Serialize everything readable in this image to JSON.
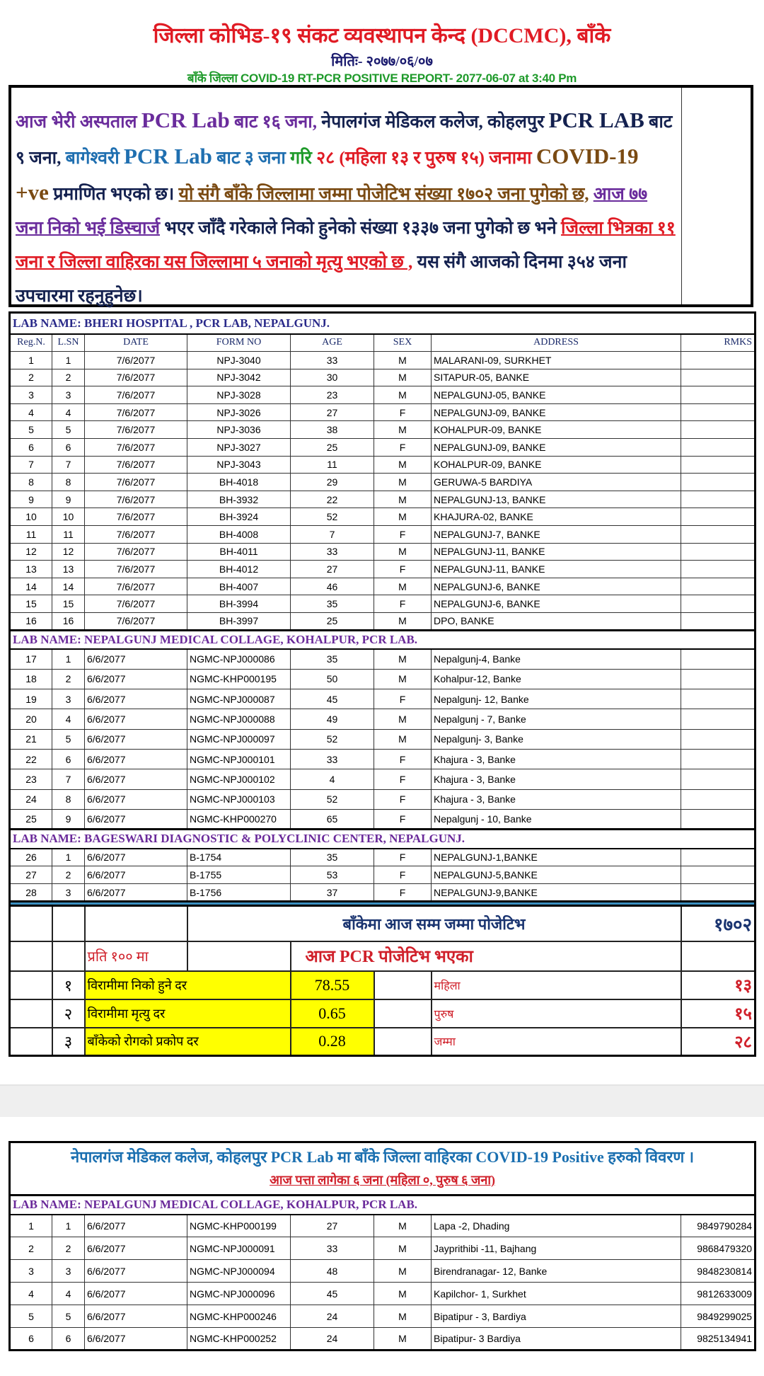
{
  "header": {
    "title": "जिल्ला कोभिड-१९ संकट व्यवस्थापन केन्द (DCCMC), बाँके",
    "date": "मितिः- २०७७/०६/०७",
    "subtitle": "बाँके जिल्ला COVID-19 RT-PCR POSITIVE REPORT- 2077-06-07  at 3:40 Pm"
  },
  "summary_paragraph": [
    {
      "text": "आज भेरी अस्पताल ",
      "color": "#6a2c9c"
    },
    {
      "text": "PCR Lab",
      "color": "#6a2c9c",
      "latin": true
    },
    {
      "text": " बाट १६ जना, ",
      "color": "#6a2c9c"
    },
    {
      "text": "नेपालगंज मेडिकल कलेज, कोहलपुर ",
      "color": "#14214f"
    },
    {
      "text": "PCR LAB",
      "color": "#14214f",
      "latin": true
    },
    {
      "text": " बाट ९ जना, ",
      "color": "#14214f"
    },
    {
      "text": "बागेश्वरी ",
      "color": "#1f6fb0"
    },
    {
      "text": "PCR Lab",
      "color": "#1f6fb0",
      "latin": true
    },
    {
      "text": " बाट ३ जना ",
      "color": "#1f6fb0"
    },
    {
      "text": "गरि ",
      "color": "#1e9a2a"
    },
    {
      "text": "२८ (महिला १३ र पुरुष १५) जनामा ",
      "color": "#e01b24"
    },
    {
      "text": "COVID-19 +ve",
      "color": "#7a4a12",
      "latin": true
    },
    {
      "text": "  प्रमाणित भएको छ। ",
      "color": "#14214f"
    },
    {
      "text": "यो संगै बाँके जिल्लामा जम्मा पोजेटिभ संख्या १७०२ जना पुगेको छ,",
      "color": "#7a4a12",
      "underline": true
    },
    {
      "text": " ",
      "color": "#14214f"
    },
    {
      "text": "आज ७७ जना निको भई डिस्चार्ज",
      "color": "#6a2c9c",
      "underline": true
    },
    {
      "text": " भएर जाँदै गरेकाले निको हुनेको संख्या १३३७ जना पुगेको छ भने ",
      "color": "#14214f"
    },
    {
      "text": "जिल्ला भित्रका ११ जना र जिल्ला वाहिरका यस जिल्लामा ५ जनाको मृत्यु भएको छ ,",
      "color": "#e01b24",
      "underline": true
    },
    {
      "text": " यस संगै आजको दिनमा ३५४ जना उपचारमा रहनुहुनेछ।",
      "color": "#14214f"
    }
  ],
  "columns": [
    "Reg.N.",
    "L.SN",
    "DATE",
    "FORM NO",
    "AGE",
    "SEX",
    "ADDRESS",
    "RMKS"
  ],
  "labs": [
    {
      "name": "LAB NAME: BHERI HOSPITAL , PCR LAB, NEPALGUNJ.",
      "rows": [
        [
          "1",
          "1",
          "7/6/2077",
          "NPJ-3040",
          "33",
          "M",
          "MALARANI-09, SURKHET",
          ""
        ],
        [
          "2",
          "2",
          "7/6/2077",
          "NPJ-3042",
          "30",
          "M",
          "SITAPUR-05, BANKE",
          ""
        ],
        [
          "3",
          "3",
          "7/6/2077",
          "NPJ-3028",
          "23",
          "M",
          "NEPALGUNJ-05, BANKE",
          ""
        ],
        [
          "4",
          "4",
          "7/6/2077",
          "NPJ-3026",
          "27",
          "F",
          "NEPALGUNJ-09, BANKE",
          ""
        ],
        [
          "5",
          "5",
          "7/6/2077",
          "NPJ-3036",
          "38",
          "M",
          "KOHALPUR-09, BANKE",
          ""
        ],
        [
          "6",
          "6",
          "7/6/2077",
          "NPJ-3027",
          "25",
          "F",
          "NEPALGUNJ-09, BANKE",
          ""
        ],
        [
          "7",
          "7",
          "7/6/2077",
          "NPJ-3043",
          "11",
          "M",
          "KOHALPUR-09, BANKE",
          ""
        ],
        [
          "8",
          "8",
          "7/6/2077",
          "BH-4018",
          "29",
          "M",
          "GERUWA-5 BARDIYA",
          ""
        ],
        [
          "9",
          "9",
          "7/6/2077",
          "BH-3932",
          "22",
          "M",
          "NEPALGUNJ-13, BANKE",
          ""
        ],
        [
          "10",
          "10",
          "7/6/2077",
          "BH-3924",
          "52",
          "M",
          "KHAJURA-02, BANKE",
          ""
        ],
        [
          "11",
          "11",
          "7/6/2077",
          "BH-4008",
          "7",
          "F",
          "NEPALGUNJ-7, BANKE",
          ""
        ],
        [
          "12",
          "12",
          "7/6/2077",
          "BH-4011",
          "33",
          "M",
          "NEPALGUNJ-11, BANKE",
          ""
        ],
        [
          "13",
          "13",
          "7/6/2077",
          "BH-4012",
          "27",
          "F",
          "NEPALGUNJ-11, BANKE",
          ""
        ],
        [
          "14",
          "14",
          "7/6/2077",
          "BH-4007",
          "46",
          "M",
          "NEPALGUNJ-6, BANKE",
          ""
        ],
        [
          "15",
          "15",
          "7/6/2077",
          "BH-3994",
          "35",
          "F",
          "NEPALGUNJ-6, BANKE",
          ""
        ],
        [
          "16",
          "16",
          "7/6/2077",
          "BH-3997",
          "25",
          "M",
          "DPO, BANKE",
          ""
        ]
      ]
    },
    {
      "name": "LAB NAME: NEPALGUNJ MEDICAL COLLAGE, KOHALPUR, PCR LAB.",
      "rows": [
        [
          "17",
          "1",
          "6/6/2077",
          "NGMC-NPJ000086",
          "35",
          "M",
          "Nepalgunj-4, Banke",
          ""
        ],
        [
          "18",
          "2",
          "6/6/2077",
          "NGMC-KHP000195",
          "50",
          "M",
          "Kohalpur-12, Banke",
          ""
        ],
        [
          "19",
          "3",
          "6/6/2077",
          "NGMC-NPJ000087",
          "45",
          "F",
          "Nepalgunj- 12, Banke",
          ""
        ],
        [
          "20",
          "4",
          "6/6/2077",
          "NGMC-NPJ000088",
          "49",
          "M",
          "Nepalgunj - 7, Banke",
          ""
        ],
        [
          "21",
          "5",
          "6/6/2077",
          "NGMC-NPJ000097",
          "52",
          "M",
          "Nepalgunj- 3, Banke",
          ""
        ],
        [
          "22",
          "6",
          "6/6/2077",
          "NGMC-NPJ000101",
          "33",
          "F",
          "Khajura - 3, Banke",
          ""
        ],
        [
          "23",
          "7",
          "6/6/2077",
          "NGMC-NPJ000102",
          "4",
          "F",
          "Khajura - 3, Banke",
          ""
        ],
        [
          "24",
          "8",
          "6/6/2077",
          "NGMC-NPJ000103",
          "52",
          "F",
          "Khajura - 3, Banke",
          ""
        ],
        [
          "25",
          "9",
          "6/6/2077",
          "NGMC-KHP000270",
          "65",
          "F",
          "Nepalgunj - 10, Banke",
          ""
        ]
      ]
    },
    {
      "name": "LAB NAME: BAGESWARI DIAGNOSTIC  & POLYCLINIC CENTER, NEPALGUNJ.",
      "rows": [
        [
          "26",
          "1",
          "6/6/2077",
          "B-1754",
          "35",
          "F",
          "NEPALGUNJ-1,BANKE",
          ""
        ],
        [
          "27",
          "2",
          "6/6/2077",
          "B-1755",
          "53",
          "F",
          "NEPALGUNJ-5,BANKE",
          ""
        ],
        [
          "28",
          "3",
          "6/6/2077",
          "B-1756",
          "37",
          "F",
          "NEPALGUNJ-9,BANKE",
          ""
        ]
      ]
    }
  ],
  "totals": {
    "cumulative_label": "बाँकेमा आज सम्म जम्मा पोजेटिभ",
    "cumulative_value": "१७०२",
    "per100_label": "प्रति १०० मा",
    "today_label": "आज PCR पोजेटिभ भएका",
    "rates": [
      {
        "n": "१",
        "label": "विरामीमा निको हुने दर",
        "value": "78.55",
        "sex_label": "महिला",
        "count": "१३"
      },
      {
        "n": "२",
        "label": "विरामीमा मृत्यु दर",
        "value": "0.65",
        "sex_label": "पुरुष",
        "count": "१५"
      },
      {
        "n": "३",
        "label": "बाँकेको रोगको प्रकोप दर",
        "value": "0.28",
        "sex_label": "जम्मा",
        "count": "२८"
      }
    ],
    "highlight_color": "#ffff00"
  },
  "outside": {
    "title": "नेपालगंज मेडिकल कलेज, कोहलपुर PCR Lab मा बाँके जिल्ला वाहिरका COVID-19 Positive हरुको विवरण ।",
    "subtitle": "आज पत्ता लागेका ६ जना (महिला ०, पुरुष ६ जना)",
    "lab_name": "LAB NAME: NEPALGUNJ MEDICAL COLLAGE, KOHALPUR, PCR LAB.",
    "rows": [
      [
        "1",
        "1",
        "6/6/2077",
        "NGMC-KHP000199",
        "27",
        "M",
        "Lapa -2, Dhading",
        "9849790284"
      ],
      [
        "2",
        "2",
        "6/6/2077",
        "NGMC-NPJ000091",
        "33",
        "M",
        "Jayprithibi -11, Bajhang",
        "9868479320"
      ],
      [
        "3",
        "3",
        "6/6/2077",
        "NGMC-NPJ000094",
        "48",
        "M",
        "Birendranagar- 12, Banke",
        "9848230814"
      ],
      [
        "4",
        "4",
        "6/6/2077",
        "NGMC-NPJ000096",
        "45",
        "M",
        "Kapilchor- 1, Surkhet",
        "9812633009"
      ],
      [
        "5",
        "5",
        "6/6/2077",
        "NGMC-KHP000246",
        "24",
        "M",
        "Bipatipur - 3, Bardiya",
        "9849299025"
      ],
      [
        "6",
        "6",
        "6/6/2077",
        "NGMC-KHP000252",
        "24",
        "M",
        "Bipatipur- 3 Bardiya",
        "9825134941"
      ]
    ]
  }
}
